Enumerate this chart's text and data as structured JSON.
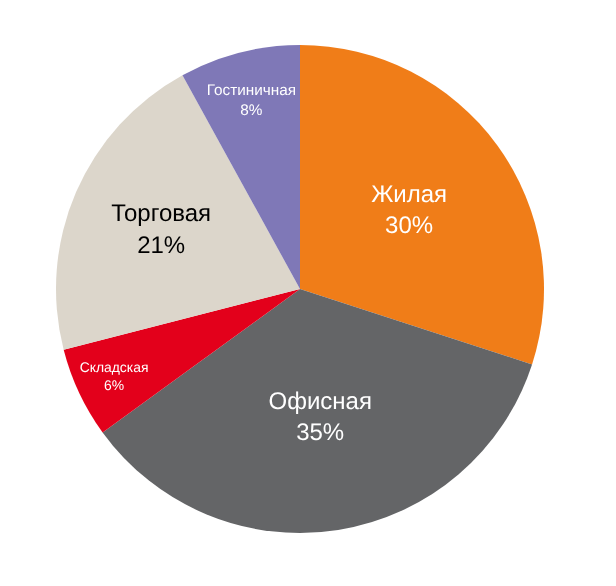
{
  "chart_data": {
    "type": "pie",
    "categories": [
      "Жилая",
      "Офисная",
      "Складская",
      "Торговая",
      "Гостиничная"
    ],
    "values": [
      30,
      35,
      6,
      21,
      8
    ],
    "value_labels": [
      "30%",
      "35%",
      "6%",
      "21%",
      "8%"
    ],
    "colors": [
      "#f07d18",
      "#646567",
      "#e3001b",
      "#dcd6cb",
      "#7f78b7"
    ],
    "legend": false
  }
}
